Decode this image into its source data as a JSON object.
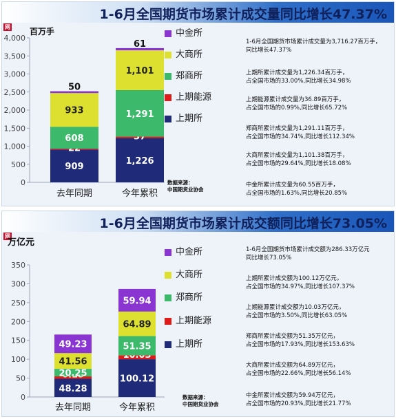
{
  "chart_data": [
    {
      "type": "bar",
      "stacked": true,
      "title": "1-6月全国期货市场累计成交量同比增长47.37%",
      "unit": "百万手",
      "categories": [
        "去年同期",
        "今年累积"
      ],
      "ylim": [
        0,
        4000
      ],
      "yticks": [
        "0",
        "500",
        "1,000",
        "1,500",
        "2,000",
        "2,500",
        "3,000",
        "3,500",
        "4,000"
      ],
      "series": [
        {
          "name": "上期所",
          "color": "#1f2a78",
          "values": [
            909,
            1226
          ],
          "labels": [
            "909",
            "1,226"
          ]
        },
        {
          "name": "上期能源",
          "color": "#e01919",
          "values": [
            22,
            37
          ],
          "labels": [
            "22",
            "37"
          ]
        },
        {
          "name": "郑商所",
          "color": "#3cb96a",
          "values": [
            608,
            1291
          ],
          "labels": [
            "608",
            "1,291"
          ]
        },
        {
          "name": "大商所",
          "color": "#dde02e",
          "values": [
            933,
            1101
          ],
          "labels": [
            "933",
            "1,101"
          ]
        },
        {
          "name": "中金所",
          "color": "#8a35d1",
          "values": [
            50,
            61
          ],
          "labels": [
            "50",
            "61"
          ]
        }
      ],
      "legend_order": [
        "中金所",
        "大商所",
        "郑商所",
        "上期能源",
        "上期所"
      ],
      "notes": [
        "1-6月全国期货市场累计成交量为3,716.27百万手，\n同比增长47.37%",
        "上期所累计成交量为1,226.34百万手，\n占全国市场的33.00%,同比增长34.98%",
        "上期能源累计成交量为36.89百万手，\n占全国市场的0.99%,同比增长65.72%",
        "郑商所累计成交量为1,291.11百万手，\n占全国市场的34.74%,同比增长112.34%",
        "大商所累计成交量为1,101.38百万手，\n占全国市场的29.64%,同比增长18.08%",
        "中金所累计成交量为60.55百万手，\n占全国市场的1.63%,同比增长20.85%"
      ],
      "source": "数据来源：\n中国期货业协会"
    },
    {
      "type": "bar",
      "stacked": true,
      "title": "1-6月全国期货市场累计成交额同比增长73.05%",
      "unit": "万亿元",
      "categories": [
        "去年同期",
        "今年累积"
      ],
      "ylim": [
        0,
        350
      ],
      "yticks": [
        "0",
        "50",
        "100",
        "150",
        "200",
        "250",
        "300",
        "350"
      ],
      "series": [
        {
          "name": "上期所",
          "color": "#1f2a78",
          "values": [
            48.28,
            100.12
          ],
          "labels": [
            "48.28",
            "100.12"
          ]
        },
        {
          "name": "上期能源",
          "color": "#e01919",
          "values": [
            6.15,
            10.03
          ],
          "labels": [
            "6.15",
            "10.03"
          ]
        },
        {
          "name": "郑商所",
          "color": "#3cb96a",
          "values": [
            20.25,
            51.35
          ],
          "labels": [
            "20.25",
            "51.35"
          ]
        },
        {
          "name": "大商所",
          "color": "#dde02e",
          "values": [
            41.56,
            64.89
          ],
          "labels": [
            "41.56",
            "64.89"
          ]
        },
        {
          "name": "中金所",
          "color": "#8a35d1",
          "values": [
            49.23,
            59.94
          ],
          "labels": [
            "49.23",
            "59.94"
          ]
        }
      ],
      "legend_order": [
        "中金所",
        "大商所",
        "郑商所",
        "上期能源",
        "上期所"
      ],
      "notes": [
        "1-6月全国期货市场累计成交额为286.33万亿元\n同比增长73.05%",
        "上期所累计成交额为100.12万亿元，\n占全国市场的34.97%,同比增长107.37%",
        "上期能源累计成交额为10.03万亿元，\n占全国市场的3.50%,同比增长63.05%",
        "郑商所累计成交额为51.35万亿元，\n占全国市场的17.93%,同比增长153.63%",
        "大商所累计成交额为64.89万亿元，\n占全国市场的22.66%,同比增长56.14%",
        "中金所累计成交额为59.94万亿元，\n占全国市场的20.93%,同比增长21.77%"
      ],
      "source": "数据来源：\n中国期货业协会"
    }
  ],
  "badge": "网"
}
